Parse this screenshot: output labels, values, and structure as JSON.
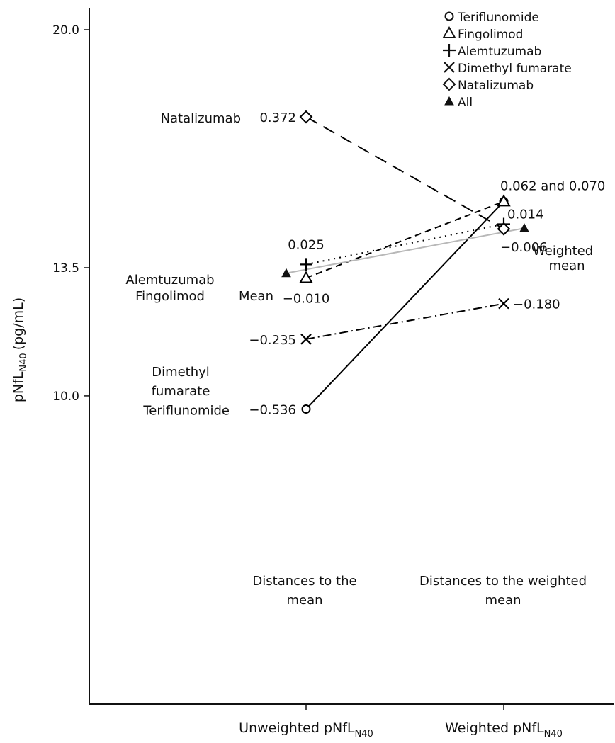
{
  "chart_data": {
    "type": "line",
    "categories": [
      "Unweighted pNfL",
      "Weighted pNfL"
    ],
    "category_subscript": "N40",
    "ylabel": "pNfL",
    "ylabel_subscript": "N40",
    "ylabel_unit": "(pg/mL)",
    "yticks": [
      "10.0",
      "13.5",
      "20.0"
    ],
    "ytick_values": [
      10.0,
      13.5,
      20.0
    ],
    "legend_position": "top-right",
    "series": [
      {
        "name": "Teriflunomide",
        "marker": "circle",
        "dash": "solid",
        "color": "#000000",
        "values": [
          9.64,
          15.31
        ],
        "left_value_label": "−0.536",
        "right_value_label": "0.062 and 0.070",
        "side_label": [
          "Teriflunomide"
        ]
      },
      {
        "name": "Fingolimod",
        "marker": "triangle-open",
        "dash": "short-dash",
        "color": "#000000",
        "values": [
          13.22,
          15.31
        ],
        "left_value_label": "−0.010",
        "right_value_label": "",
        "side_label": []
      },
      {
        "name": "Alemtuzumab",
        "marker": "plus",
        "dash": "dotted",
        "color": "#000000",
        "values": [
          13.59,
          14.69
        ],
        "left_value_label": "0.025",
        "right_value_label": "0.014",
        "side_label": [
          "Alemtuzumab",
          "Fingolimod"
        ]
      },
      {
        "name": "Dimethyl fumarate",
        "marker": "x",
        "dash": "dash-dot",
        "color": "#000000",
        "values": [
          11.55,
          12.52
        ],
        "left_value_label": "−0.235",
        "right_value_label": "−0.180",
        "side_label": [
          "Dimethyl",
          "fumarate"
        ]
      },
      {
        "name": "Natalizumab",
        "marker": "diamond-open",
        "dash": "long-dash",
        "color": "#000000",
        "values": [
          17.62,
          14.56
        ],
        "left_value_label": "0.372",
        "right_value_label": "−0.006",
        "side_label": [
          "Natalizumab"
        ]
      },
      {
        "name": "All",
        "marker": "triangle-filled",
        "dash": "solid",
        "color": "#b8b8b8",
        "values": [
          13.35,
          14.58
        ],
        "left_value_label": "",
        "right_value_label": "",
        "side_label": []
      }
    ],
    "annotations": {
      "mean_label": "Mean",
      "weighted_mean_label": [
        "Weighted",
        "mean"
      ],
      "distance_unweighted": [
        "Distances to the",
        "mean"
      ],
      "distance_weighted": [
        "Distances to the weighted",
        "mean"
      ]
    }
  }
}
